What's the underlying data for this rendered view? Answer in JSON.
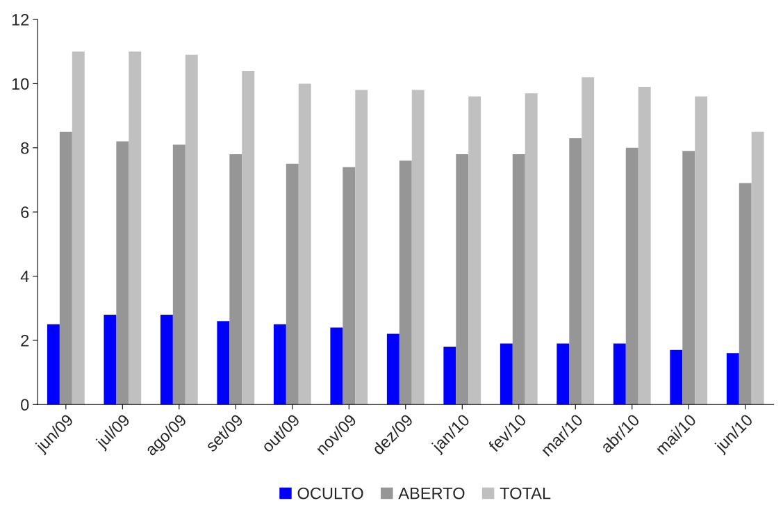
{
  "chart_data": {
    "type": "bar",
    "categories": [
      "jun/09",
      "jul/09",
      "ago/09",
      "set/09",
      "out/09",
      "nov/09",
      "dez/09",
      "jan/10",
      "fev/10",
      "mar/10",
      "abr/10",
      "mai/10",
      "jun/10"
    ],
    "series": [
      {
        "name": "OCULTO",
        "color": "#0000ff",
        "values": [
          2.5,
          2.8,
          2.8,
          2.6,
          2.5,
          2.4,
          2.2,
          1.8,
          1.9,
          1.9,
          1.9,
          1.7,
          1.6
        ]
      },
      {
        "name": "ABERTO",
        "color": "#969696",
        "values": [
          8.5,
          8.2,
          8.1,
          7.8,
          7.5,
          7.4,
          7.6,
          7.8,
          7.8,
          8.3,
          8.0,
          7.9,
          6.9
        ]
      },
      {
        "name": "TOTAL",
        "color": "#c0c0c0",
        "values": [
          11.0,
          11.0,
          10.9,
          10.4,
          10.0,
          9.8,
          9.8,
          9.6,
          9.7,
          10.2,
          9.9,
          9.6,
          8.5
        ]
      }
    ],
    "ylim": [
      0,
      12
    ],
    "yticks": [
      0,
      2,
      4,
      6,
      8,
      10,
      12
    ],
    "grid": false,
    "legend": "bottom"
  }
}
